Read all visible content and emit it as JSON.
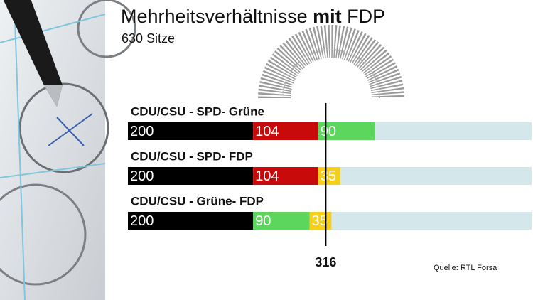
{
  "chart_data": {
    "type": "stacked-bar",
    "title": [
      "Mehrheitsverhältnisse",
      "mit",
      "FDP"
    ],
    "subtitle": "630 Sitze",
    "xlim": [
      0,
      630
    ],
    "majority": 316,
    "source": "Quelle: RTL Forsa",
    "rows": [
      {
        "label": "CDU/CSU - SPD- Grüne",
        "segments": [
          {
            "value": 200,
            "color": "#000000"
          },
          {
            "value": 104,
            "color": "#c80a0a"
          },
          {
            "value": 90,
            "color": "#5cd65c"
          }
        ]
      },
      {
        "label": "CDU/CSU - SPD- FDP",
        "segments": [
          {
            "value": 200,
            "color": "#000000"
          },
          {
            "value": 104,
            "color": "#c80a0a"
          },
          {
            "value": 35,
            "color": "#f6cf1b"
          }
        ]
      },
      {
        "label": "CDU/CSU - Grüne- FDP",
        "segments": [
          {
            "value": 200,
            "color": "#000000"
          },
          {
            "value": 90,
            "color": "#5cd65c"
          },
          {
            "value": 35,
            "color": "#f6cf1b"
          }
        ]
      }
    ]
  }
}
